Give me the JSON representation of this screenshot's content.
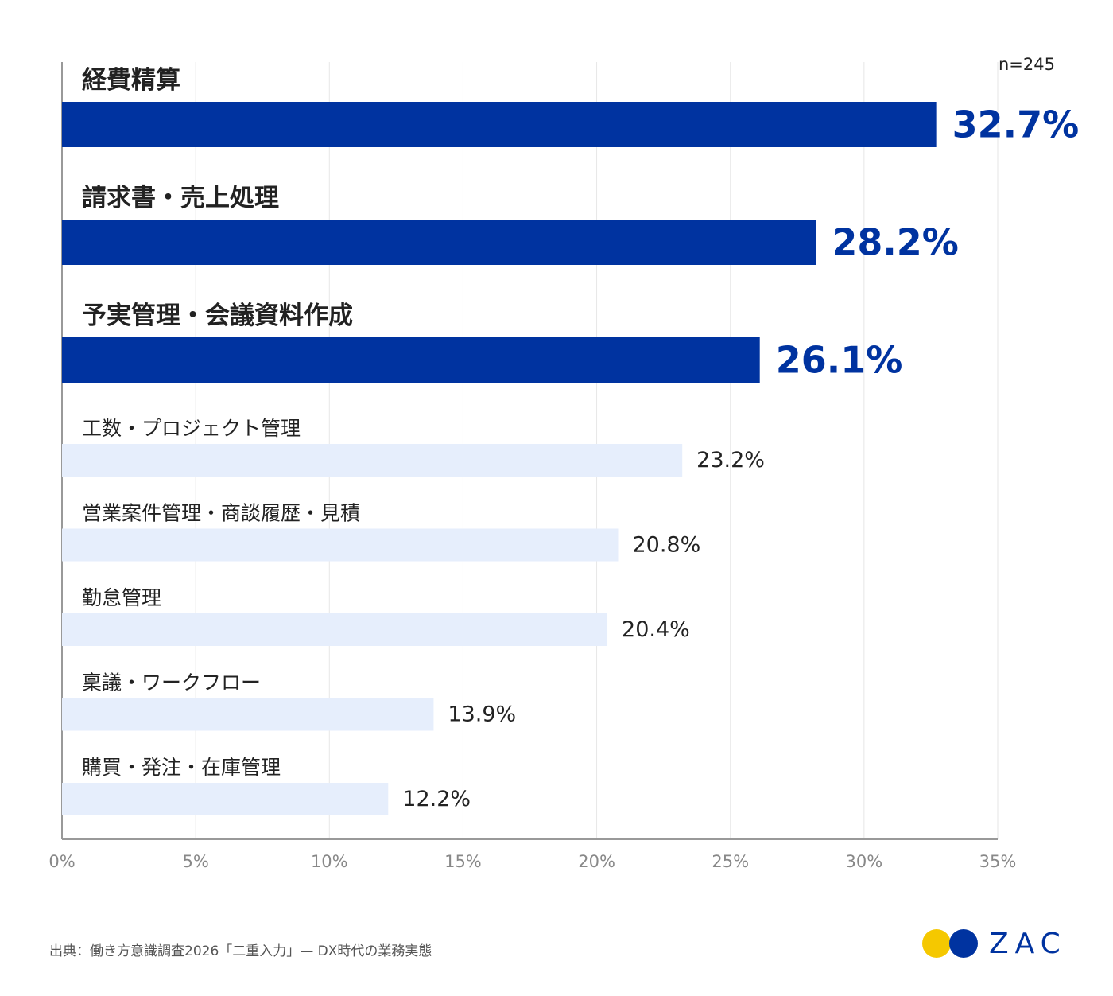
{
  "chart_data": {
    "type": "bar",
    "orientation": "horizontal",
    "categories": [
      "経費精算",
      "請求書・売上処理",
      "予実管理・会議資料作成",
      "工数・プロジェクト管理",
      "営業案件管理・商談履歴・見積",
      "勤怠管理",
      "稟議・ワークフロー",
      "購買・発注・在庫管理"
    ],
    "values": [
      32.7,
      28.2,
      26.1,
      23.2,
      20.8,
      20.4,
      13.9,
      12.2
    ],
    "value_labels": [
      "32.7%",
      "28.2%",
      "26.1%",
      "23.2%",
      "20.8%",
      "20.4%",
      "13.9%",
      "12.2%"
    ],
    "highlight_count": 3,
    "xlim": [
      0,
      35
    ],
    "xticks": [
      0,
      5,
      10,
      15,
      20,
      25,
      30,
      35
    ],
    "xtick_labels": [
      "0%",
      "5%",
      "10%",
      "15%",
      "20%",
      "25%",
      "30%",
      "35%"
    ],
    "sample_label": "n=245",
    "grid": true,
    "colors": {
      "highlight": "#0033a0",
      "normal": "#e6eefc",
      "highlight_text": "#0033a0",
      "grid": "#e6e6e6",
      "axis": "#999999"
    }
  },
  "footer": {
    "source": "出典：働き方意識調査2026「二重入力」— DX時代の業務実態",
    "logo_text": "ZAC",
    "logo_colors": {
      "yellow": "#f5c800",
      "blue": "#0033a0"
    }
  }
}
